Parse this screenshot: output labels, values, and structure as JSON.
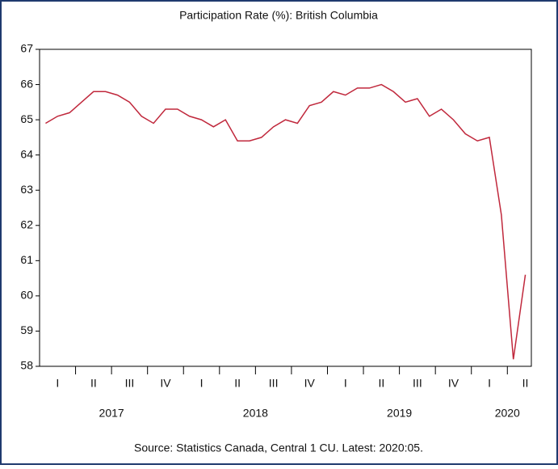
{
  "chart_data": {
    "type": "line",
    "title": "Participation Rate (%): British Columbia",
    "source": "Source: Statistics Canada, Central 1 CU. Latest: 2020:05.",
    "quarters": [
      "I",
      "II",
      "III",
      "IV",
      "I",
      "II",
      "III",
      "IV",
      "I",
      "II",
      "III",
      "IV",
      "I",
      "II"
    ],
    "years": [
      "2017",
      "2018",
      "2019",
      "2020"
    ],
    "series": [
      {
        "color": "#c0283c",
        "values": [
          64.9,
          65.1,
          65.2,
          65.5,
          65.8,
          65.8,
          65.7,
          65.5,
          65.1,
          64.9,
          65.3,
          65.3,
          65.1,
          65.0,
          64.8,
          65.0,
          64.4,
          64.4,
          64.5,
          64.8,
          65.0,
          64.9,
          65.4,
          65.5,
          65.8,
          65.7,
          65.9,
          65.9,
          66.0,
          65.8,
          65.5,
          65.6,
          65.1,
          65.3,
          65.0,
          64.6,
          64.4,
          64.5,
          62.3,
          58.2,
          60.6
        ]
      }
    ],
    "ylim": [
      58,
      67
    ],
    "yticks": [
      58,
      59,
      60,
      61,
      62,
      63,
      64,
      65,
      66,
      67
    ]
  }
}
